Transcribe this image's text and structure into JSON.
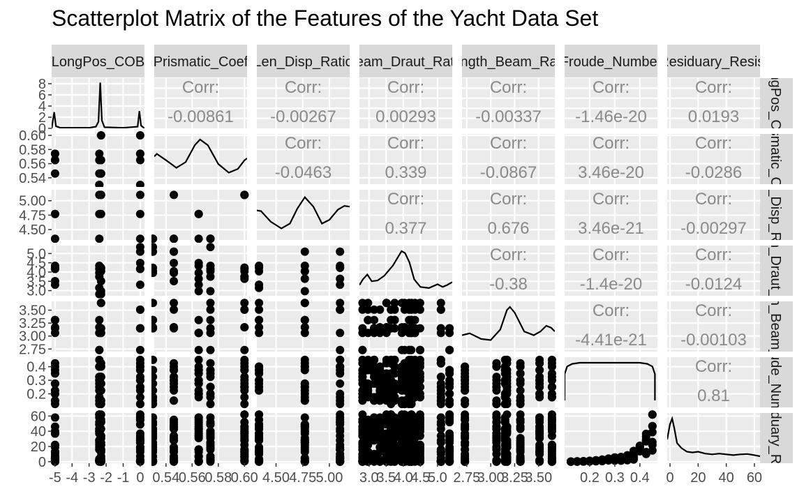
{
  "chart_data": {
    "type": "scatter",
    "title": "Scatterplot Matrix of the Features of the Yacht Data Set",
    "corr_label": "Corr:",
    "grid": true,
    "variables": [
      {
        "strip_top": "LongPos_COB",
        "strip_right": "LongPos_COB"
      },
      {
        "strip_top": "Prismatic_Coef",
        "strip_right": "Prismatic_Coef"
      },
      {
        "strip_top": "Len_Disp_Ratio",
        "strip_right": "Len_Disp_Ratio"
      },
      {
        "strip_top": "Beam_Draut_Ratio",
        "strip_right": "Beam_Draut_Ratio"
      },
      {
        "strip_top": "Length_Beam_Ratio",
        "strip_right": "Length_Beam_Ratio"
      },
      {
        "strip_top": "Froude_Number",
        "strip_right": "Froude_Number"
      },
      {
        "strip_top": "Residuary_Resist",
        "strip_right": "Residuary_Resist"
      }
    ],
    "x_ranges": [
      [
        -5.2,
        0.25
      ],
      [
        0.531,
        0.602
      ],
      [
        4.32,
        5.19
      ],
      [
        2.72,
        5.43
      ],
      [
        2.7,
        3.67
      ],
      [
        0.1,
        0.47
      ],
      [
        -2,
        64
      ]
    ],
    "y_ranges_scatter": [
      null,
      [
        0.531,
        0.602
      ],
      [
        4.32,
        5.19
      ],
      [
        2.72,
        5.43
      ],
      [
        2.7,
        3.67
      ],
      [
        0.1,
        0.47
      ],
      [
        -2,
        64
      ]
    ],
    "x_ticks": [
      [
        "-5",
        "-4",
        "-3",
        "-2",
        "-1",
        "0"
      ],
      [
        "0.54",
        "0.56",
        "0.58",
        "0.60"
      ],
      [
        "4.50",
        "4.75",
        "5.00"
      ],
      [
        "3.0",
        "3.5",
        "4.0",
        "4.5",
        "5.0"
      ],
      [
        "2.75",
        "3.00",
        "3.25",
        "3.50"
      ],
      [
        "0.2",
        "0.3",
        "0.4"
      ],
      [
        "0",
        "20",
        "40",
        "60"
      ]
    ],
    "y_ticks": [
      [
        "0",
        "2",
        "4",
        "6",
        "8"
      ],
      [
        "0.54",
        "0.56",
        "0.58",
        "0.60"
      ],
      [
        "4.50",
        "4.75",
        "5.00"
      ],
      [
        "3.0",
        "3.5",
        "4.0",
        "4.5",
        "5.0"
      ],
      [
        "2.75",
        "3.00",
        "3.25",
        "3.50"
      ],
      [
        "0.2",
        "0.3",
        "0.4"
      ],
      [
        "0",
        "20",
        "40",
        "60"
      ]
    ],
    "density_y_range": [
      0,
      9
    ],
    "category_values": [
      [
        -5.0,
        -2.4,
        -2.3,
        0.0
      ],
      [
        0.53,
        0.546,
        0.565,
        0.574,
        0.6
      ],
      [
        4.34,
        4.77,
        5.1
      ],
      [
        2.81,
        2.97,
        3.15,
        3.32,
        3.51,
        3.64,
        3.75,
        3.96,
        4.04,
        4.17,
        4.23,
        4.24,
        4.34,
        4.49,
        5.1,
        5.35
      ],
      [
        2.73,
        3.06,
        3.15,
        3.17,
        3.31,
        3.51,
        3.64
      ],
      [
        0.125,
        0.15,
        0.175,
        0.2,
        0.225,
        0.25,
        0.275,
        0.3,
        0.325,
        0.35,
        0.375,
        0.4,
        0.425,
        0.45
      ],
      [
        0.01,
        0.05,
        0.1,
        0.3,
        0.5,
        0.8,
        1.2,
        1.8,
        2.5,
        3.5,
        4.8,
        7,
        10,
        13,
        16,
        19,
        22,
        25,
        28,
        31,
        34,
        37,
        40,
        43,
        46,
        49,
        52,
        55,
        58,
        62
      ]
    ],
    "correlations": [
      {
        "row": 0,
        "col": 1,
        "value": "-0.00861"
      },
      {
        "row": 0,
        "col": 2,
        "value": "-0.00267"
      },
      {
        "row": 0,
        "col": 3,
        "value": "0.00293"
      },
      {
        "row": 0,
        "col": 4,
        "value": "-0.00337"
      },
      {
        "row": 0,
        "col": 5,
        "value": "-1.46e-20"
      },
      {
        "row": 0,
        "col": 6,
        "value": "0.0193"
      },
      {
        "row": 1,
        "col": 2,
        "value": "-0.0463"
      },
      {
        "row": 1,
        "col": 3,
        "value": "0.339"
      },
      {
        "row": 1,
        "col": 4,
        "value": "-0.0867"
      },
      {
        "row": 1,
        "col": 5,
        "value": "3.46e-20"
      },
      {
        "row": 1,
        "col": 6,
        "value": "-0.0286"
      },
      {
        "row": 2,
        "col": 3,
        "value": "0.377"
      },
      {
        "row": 2,
        "col": 4,
        "value": "0.676"
      },
      {
        "row": 2,
        "col": 5,
        "value": "3.46e-21"
      },
      {
        "row": 2,
        "col": 6,
        "value": "-0.00297"
      },
      {
        "row": 3,
        "col": 4,
        "value": "-0.38"
      },
      {
        "row": 3,
        "col": 5,
        "value": "-1.4e-20"
      },
      {
        "row": 3,
        "col": 6,
        "value": "-0.0124"
      },
      {
        "row": 4,
        "col": 5,
        "value": "-4.41e-21"
      },
      {
        "row": 4,
        "col": 6,
        "value": "-0.00103"
      },
      {
        "row": 5,
        "col": 6,
        "value": "0.81"
      }
    ],
    "densities": [
      {
        "var": 0,
        "points": [
          [
            -5.2,
            0.0
          ],
          [
            -5.05,
            2.9
          ],
          [
            -4.95,
            0.4
          ],
          [
            -4.7,
            0.1
          ],
          [
            -3.0,
            0.1
          ],
          [
            -2.6,
            0.3
          ],
          [
            -2.45,
            1.2
          ],
          [
            -2.35,
            8.2
          ],
          [
            -2.25,
            1.4
          ],
          [
            -2.1,
            0.2
          ],
          [
            -1.0,
            0.1
          ],
          [
            -0.15,
            0.3
          ],
          [
            -0.05,
            3.1
          ],
          [
            0.05,
            0.5
          ],
          [
            0.25,
            0.0
          ]
        ]
      },
      {
        "var": 1,
        "points": [
          [
            0.531,
            0.55
          ],
          [
            0.533,
            0.62
          ],
          [
            0.54,
            0.45
          ],
          [
            0.548,
            0.25
          ],
          [
            0.555,
            0.4
          ],
          [
            0.562,
            0.85
          ],
          [
            0.566,
            1.0
          ],
          [
            0.572,
            0.85
          ],
          [
            0.58,
            0.35
          ],
          [
            0.588,
            0.12
          ],
          [
            0.595,
            0.22
          ],
          [
            0.6,
            0.45
          ],
          [
            0.602,
            0.5
          ]
        ]
      },
      {
        "var": 2,
        "points": [
          [
            4.32,
            0.6
          ],
          [
            4.36,
            0.58
          ],
          [
            4.45,
            0.3
          ],
          [
            4.55,
            0.12
          ],
          [
            4.63,
            0.25
          ],
          [
            4.7,
            0.65
          ],
          [
            4.77,
            0.95
          ],
          [
            4.85,
            0.7
          ],
          [
            4.93,
            0.25
          ],
          [
            5.0,
            0.35
          ],
          [
            5.08,
            0.62
          ],
          [
            5.14,
            0.72
          ],
          [
            5.19,
            0.7
          ]
        ]
      },
      {
        "var": 3,
        "points": [
          [
            2.72,
            0.1
          ],
          [
            2.82,
            0.25
          ],
          [
            2.95,
            0.38
          ],
          [
            3.08,
            0.2
          ],
          [
            3.25,
            0.22
          ],
          [
            3.45,
            0.35
          ],
          [
            3.7,
            0.62
          ],
          [
            3.85,
            0.85
          ],
          [
            3.95,
            1.0
          ],
          [
            4.05,
            0.95
          ],
          [
            4.18,
            0.7
          ],
          [
            4.32,
            0.25
          ],
          [
            4.5,
            0.05
          ],
          [
            4.75,
            0.02
          ],
          [
            5.0,
            0.12
          ],
          [
            5.15,
            0.05
          ],
          [
            5.28,
            0.1
          ],
          [
            5.43,
            0.18
          ]
        ]
      },
      {
        "var": 4,
        "points": [
          [
            2.7,
            0.25
          ],
          [
            2.78,
            0.3
          ],
          [
            2.9,
            0.15
          ],
          [
            3.0,
            0.12
          ],
          [
            3.1,
            0.4
          ],
          [
            3.17,
            0.92
          ],
          [
            3.2,
            1.0
          ],
          [
            3.25,
            0.85
          ],
          [
            3.35,
            0.35
          ],
          [
            3.45,
            0.25
          ],
          [
            3.52,
            0.35
          ],
          [
            3.58,
            0.5
          ],
          [
            3.63,
            0.45
          ],
          [
            3.67,
            0.35
          ]
        ]
      },
      {
        "var": 5,
        "points": [
          [
            0.1,
            0.0
          ],
          [
            0.1,
            0.7
          ],
          [
            0.11,
            0.9
          ],
          [
            0.13,
            0.97
          ],
          [
            0.16,
            1.0
          ],
          [
            0.4,
            1.0
          ],
          [
            0.43,
            0.97
          ],
          [
            0.45,
            0.9
          ],
          [
            0.46,
            0.7
          ],
          [
            0.46,
            0.0
          ]
        ]
      },
      {
        "var": 6,
        "points": [
          [
            -2,
            0.45
          ],
          [
            0,
            0.85
          ],
          [
            1.5,
            1.0
          ],
          [
            3,
            0.75
          ],
          [
            5,
            0.35
          ],
          [
            8,
            0.22
          ],
          [
            12,
            0.12
          ],
          [
            16,
            0.1
          ],
          [
            20,
            0.12
          ],
          [
            25,
            0.07
          ],
          [
            30,
            0.05
          ],
          [
            35,
            0.07
          ],
          [
            40,
            0.05
          ],
          [
            45,
            0.03
          ],
          [
            50,
            0.05
          ],
          [
            55,
            0.06
          ],
          [
            60,
            0.03
          ],
          [
            64,
            0.0
          ]
        ]
      }
    ],
    "resist_by_froude": [
      [
        0.125,
        0.11
      ],
      [
        0.15,
        0.27
      ],
      [
        0.175,
        0.47
      ],
      [
        0.2,
        0.78
      ],
      [
        0.225,
        1.18
      ],
      [
        0.25,
        1.83
      ],
      [
        0.275,
        2.51
      ],
      [
        0.3,
        3.56
      ],
      [
        0.325,
        4.2
      ],
      [
        0.35,
        5.1
      ],
      [
        0.375,
        8.5
      ],
      [
        0.4,
        13.2
      ],
      [
        0.425,
        23.0
      ],
      [
        0.45,
        45.0
      ]
    ]
  }
}
